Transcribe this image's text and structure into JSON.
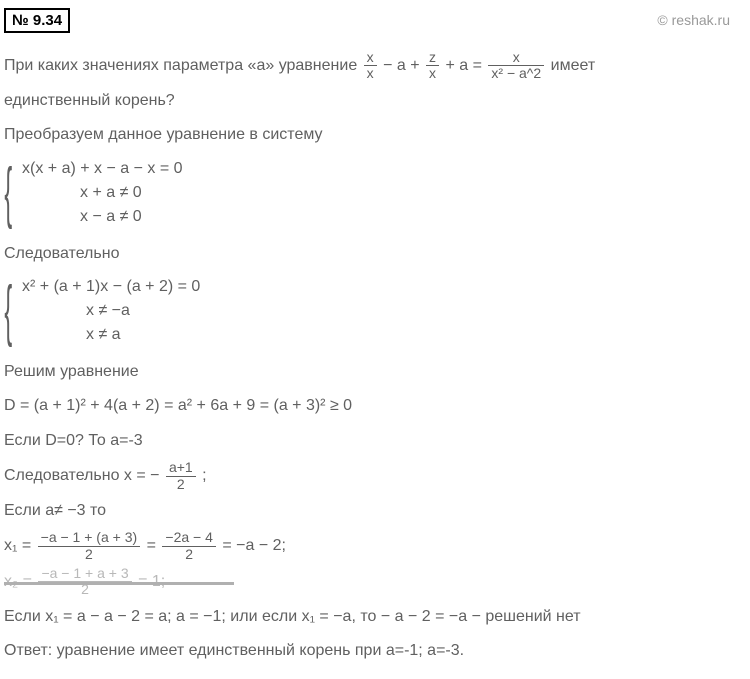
{
  "badge": "№ 9.34",
  "watermark": "© reshak.ru",
  "problem_part1": "При каких значениях параметра «a» уравнение ",
  "eq_frac1_num": "x",
  "eq_frac1_den": "x",
  "eq_mid1": " − a + ",
  "eq_frac2_num": "z",
  "eq_frac2_den": "x",
  "eq_mid2": " + a = ",
  "eq_frac3_num": "x",
  "eq_frac3_den": "x² − a^2",
  "problem_part2": " имеет",
  "problem_line2": "единственный корень?",
  "transform": "Преобразуем данное уравнение в систему",
  "sys1": {
    "l1": "x(x + a) +  x − a − x = 0",
    "l2": "x + a ≠ 0",
    "l3": "x − a ≠ 0"
  },
  "therefore": "Следовательно",
  "sys2": {
    "l1": "x² + (a + 1)x − (a + 2) = 0",
    "l2": "x ≠  −a",
    "l3": "x ≠ a"
  },
  "solve": "Решим уравнение",
  "discriminant": "D = (a + 1)² + 4(a + 2) = a² + 6a + 9 = (a + 3)² ≥ 0",
  "if_d0": "Если D=0? То a=-3",
  "therefore_x": "Следовательно x =  − ",
  "x_frac_num": "a+1",
  "x_frac_den": "2",
  "semicolon": ";",
  "if_a_ne": "Если a≠ −3 то",
  "x1_label": "x₁ = ",
  "x1_f1_num": "−a − 1 + (a + 3)",
  "x1_f1_den": "2",
  "eq_sign": " = ",
  "x1_f2_num": "−2a − 4",
  "x1_f2_den": "2",
  "x1_end": " = −a − 2;",
  "x2_label": "x₂ = ",
  "x2_f1_num": "−a − 1 + a + 3",
  "x2_f1_den": "2",
  "x2_end": " = 1;",
  "if_x1": "Если x₁ = a  − a − 2 = a; a = −1;  или если x₁ = −a, то − a − 2 = −a − решений нет",
  "answer": "Ответ: уравнение имеет единственный корень при a=-1; a=-3.",
  "colors": {
    "text": "#606060",
    "faded": "#b8b8b8",
    "background": "#ffffff"
  }
}
